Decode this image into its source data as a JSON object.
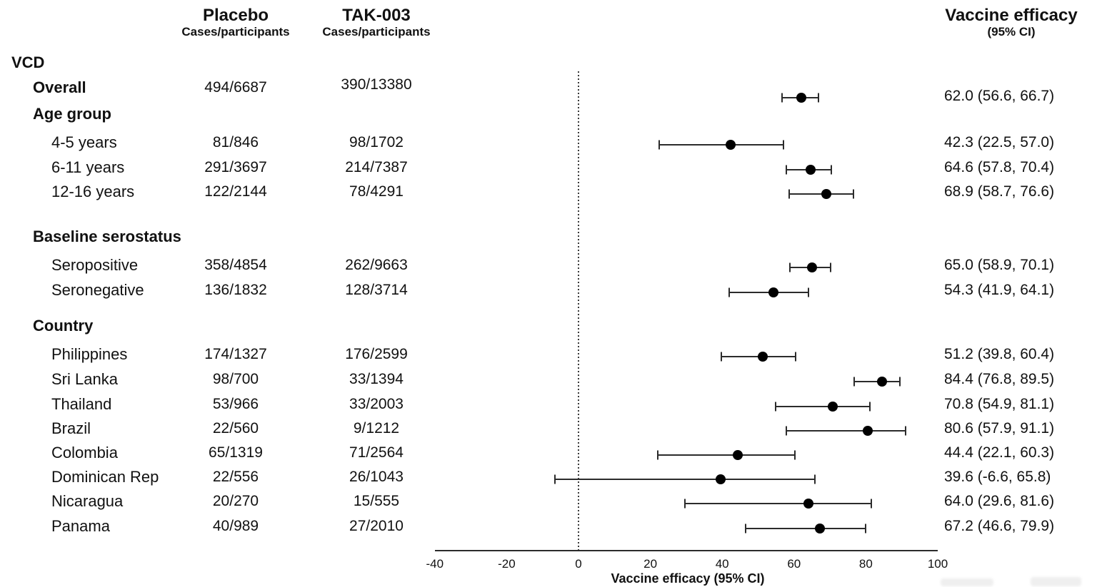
{
  "header": {
    "columns": [
      {
        "title": "Placebo",
        "subtitle": "Cases/participants"
      },
      {
        "title": "TAK-003",
        "subtitle": "Cases/participants"
      }
    ],
    "efficacy_title": "Vaccine efficacy",
    "efficacy_subtitle": "(95% CI)"
  },
  "chart_data": {
    "type": "scatter",
    "variant": "forest-plot",
    "title": "",
    "xlabel": "Vaccine efficacy (95% CI)",
    "xlim": [
      -40,
      100
    ],
    "xticks": [
      "-40",
      "-20",
      "0",
      "20",
      "40",
      "60",
      "80",
      "100"
    ],
    "xtick_values": [
      -40,
      -20,
      0,
      20,
      40,
      60,
      80,
      100
    ],
    "reference_line_x": 0,
    "grid": false,
    "colors": {
      "marker": "#000000",
      "ci_line": "#2b2b2b",
      "axis": "#2b2b2b",
      "text": "#111111",
      "background": "#ffffff"
    },
    "rows": [
      {
        "kind": "section",
        "label": "VCD",
        "indent": 0
      },
      {
        "kind": "data",
        "label": "Overall",
        "bold": true,
        "indent": 1,
        "placebo": "494/6687",
        "tak003": "390/13380",
        "estimate": 62.0,
        "ci_low": 56.6,
        "ci_high": 66.7,
        "ve_label": "62.0 (56.6, 66.7)"
      },
      {
        "kind": "section",
        "label": "Age group",
        "indent": 1
      },
      {
        "kind": "data",
        "label": "4-5 years",
        "bold": false,
        "indent": 2,
        "placebo": "81/846",
        "tak003": "98/1702",
        "estimate": 42.3,
        "ci_low": 22.5,
        "ci_high": 57.0,
        "ve_label": "42.3 (22.5, 57.0)"
      },
      {
        "kind": "data",
        "label": "6-11 years",
        "bold": false,
        "indent": 2,
        "placebo": "291/3697",
        "tak003": "214/7387",
        "estimate": 64.6,
        "ci_low": 57.8,
        "ci_high": 70.4,
        "ve_label": "64.6 (57.8, 70.4)"
      },
      {
        "kind": "data",
        "label": "12-16 years",
        "bold": false,
        "indent": 2,
        "placebo": "122/2144",
        "tak003": "78/4291",
        "estimate": 68.9,
        "ci_low": 58.7,
        "ci_high": 76.6,
        "ve_label": "68.9 (58.7, 76.6)"
      },
      {
        "kind": "section",
        "label": "Baseline serostatus",
        "indent": 1
      },
      {
        "kind": "data",
        "label": "Seropositive",
        "bold": false,
        "indent": 2,
        "placebo": "358/4854",
        "tak003": "262/9663",
        "estimate": 65.0,
        "ci_low": 58.9,
        "ci_high": 70.1,
        "ve_label": "65.0 (58.9, 70.1)"
      },
      {
        "kind": "data",
        "label": "Seronegative",
        "bold": false,
        "indent": 2,
        "placebo": "136/1832",
        "tak003": "128/3714",
        "estimate": 54.3,
        "ci_low": 41.9,
        "ci_high": 64.1,
        "ve_label": "54.3 (41.9, 64.1)"
      },
      {
        "kind": "section",
        "label": "Country",
        "indent": 1
      },
      {
        "kind": "data",
        "label": "Philippines",
        "bold": false,
        "indent": 2,
        "placebo": "174/1327",
        "tak003": "176/2599",
        "estimate": 51.2,
        "ci_low": 39.8,
        "ci_high": 60.4,
        "ve_label": "51.2 (39.8, 60.4)"
      },
      {
        "kind": "data",
        "label": "Sri Lanka",
        "bold": false,
        "indent": 2,
        "placebo": "98/700",
        "tak003": "33/1394",
        "estimate": 84.4,
        "ci_low": 76.8,
        "ci_high": 89.5,
        "ve_label": "84.4 (76.8, 89.5)"
      },
      {
        "kind": "data",
        "label": "Thailand",
        "bold": false,
        "indent": 2,
        "placebo": "53/966",
        "tak003": "33/2003",
        "estimate": 70.8,
        "ci_low": 54.9,
        "ci_high": 81.1,
        "ve_label": "70.8 (54.9, 81.1)"
      },
      {
        "kind": "data",
        "label": "Brazil",
        "bold": false,
        "indent": 2,
        "placebo": "22/560",
        "tak003": "9/1212",
        "estimate": 80.6,
        "ci_low": 57.9,
        "ci_high": 91.1,
        "ve_label": "80.6 (57.9, 91.1)"
      },
      {
        "kind": "data",
        "label": "Colombia",
        "bold": false,
        "indent": 2,
        "placebo": "65/1319",
        "tak003": "71/2564",
        "estimate": 44.4,
        "ci_low": 22.1,
        "ci_high": 60.3,
        "ve_label": "44.4 (22.1, 60.3)"
      },
      {
        "kind": "data",
        "label": "Dominican Rep",
        "bold": false,
        "indent": 2,
        "placebo": "22/556",
        "tak003": "26/1043",
        "estimate": 39.6,
        "ci_low": -6.6,
        "ci_high": 65.8,
        "ve_label": "39.6 (-6.6, 65.8)"
      },
      {
        "kind": "data",
        "label": "Nicaragua",
        "bold": false,
        "indent": 2,
        "placebo": "20/270",
        "tak003": "15/555",
        "estimate": 64.0,
        "ci_low": 29.6,
        "ci_high": 81.6,
        "ve_label": "64.0 (29.6, 81.6)"
      },
      {
        "kind": "data",
        "label": "Panama",
        "bold": false,
        "indent": 2,
        "placebo": "40/989",
        "tak003": "27/2010",
        "estimate": 67.2,
        "ci_low": 46.6,
        "ci_high": 79.9,
        "ve_label": "67.2 (46.6, 79.9)"
      }
    ]
  }
}
